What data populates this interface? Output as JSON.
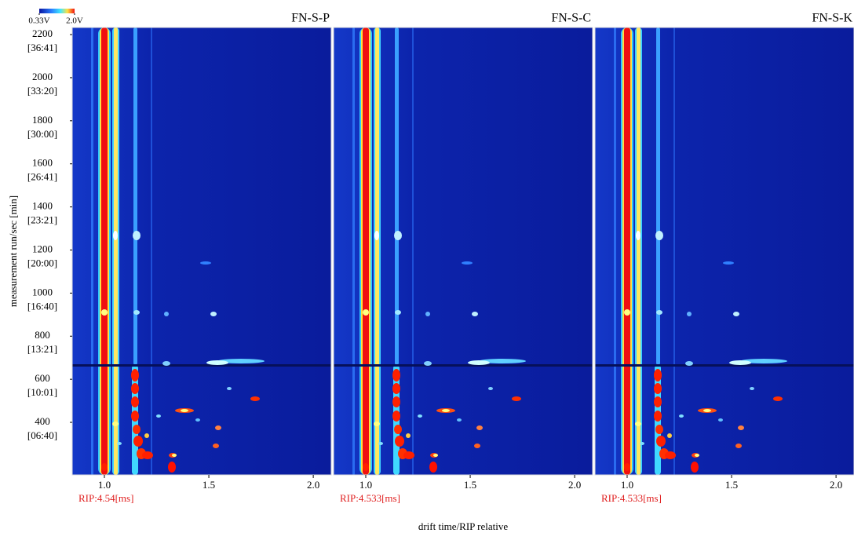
{
  "colorbar": {
    "range": [
      0.33,
      2.0
    ],
    "labels": [
      "0.33V",
      "2.0V"
    ]
  },
  "y_label": "measurement run/sec [min]",
  "x_label": "drift time/RIP relative",
  "chart_data": [
    {
      "type": "heatmap",
      "title": "FN-S-P",
      "annotation": "RIP:4.54[ms]",
      "xlim": [
        0.846,
        2.086
      ],
      "xticks": [
        {
          "value": 1,
          "label": "1.0"
        },
        1.5,
        {
          "value": 2,
          "label": "2.0"
        }
      ],
      "ylim": [
        156,
        2233
      ],
      "yticks": [
        2200,
        2000,
        1800,
        1600,
        1400,
        1200,
        1000,
        800,
        600,
        400
      ],
      "ytick_times": [
        "[36:41]",
        "[33:20]",
        "[30:00]",
        "[26:41]",
        "[23:21]",
        "[20:00]",
        "[16:40]",
        "[13:21]",
        "[10:01]",
        "[06:40]"
      ]
    },
    {
      "type": "heatmap",
      "title": "FN-S-C",
      "annotation": "RIP:4.533[ms]",
      "xlim": [
        0.846,
        2.086
      ],
      "xticks": [
        {
          "value": 1,
          "label": "1.0"
        },
        1.5,
        {
          "value": 2,
          "label": "2.0"
        }
      ],
      "ylim": [
        156,
        2233
      ]
    },
    {
      "type": "heatmap",
      "title": "FN-S-K",
      "annotation": "RIP:4.533[ms]",
      "xlim": [
        0.846,
        2.086
      ],
      "xticks": [
        {
          "value": 1,
          "label": "1.0"
        },
        1.5,
        {
          "value": 2,
          "label": "2.0"
        }
      ],
      "ylim": [
        156,
        2233
      ]
    }
  ]
}
